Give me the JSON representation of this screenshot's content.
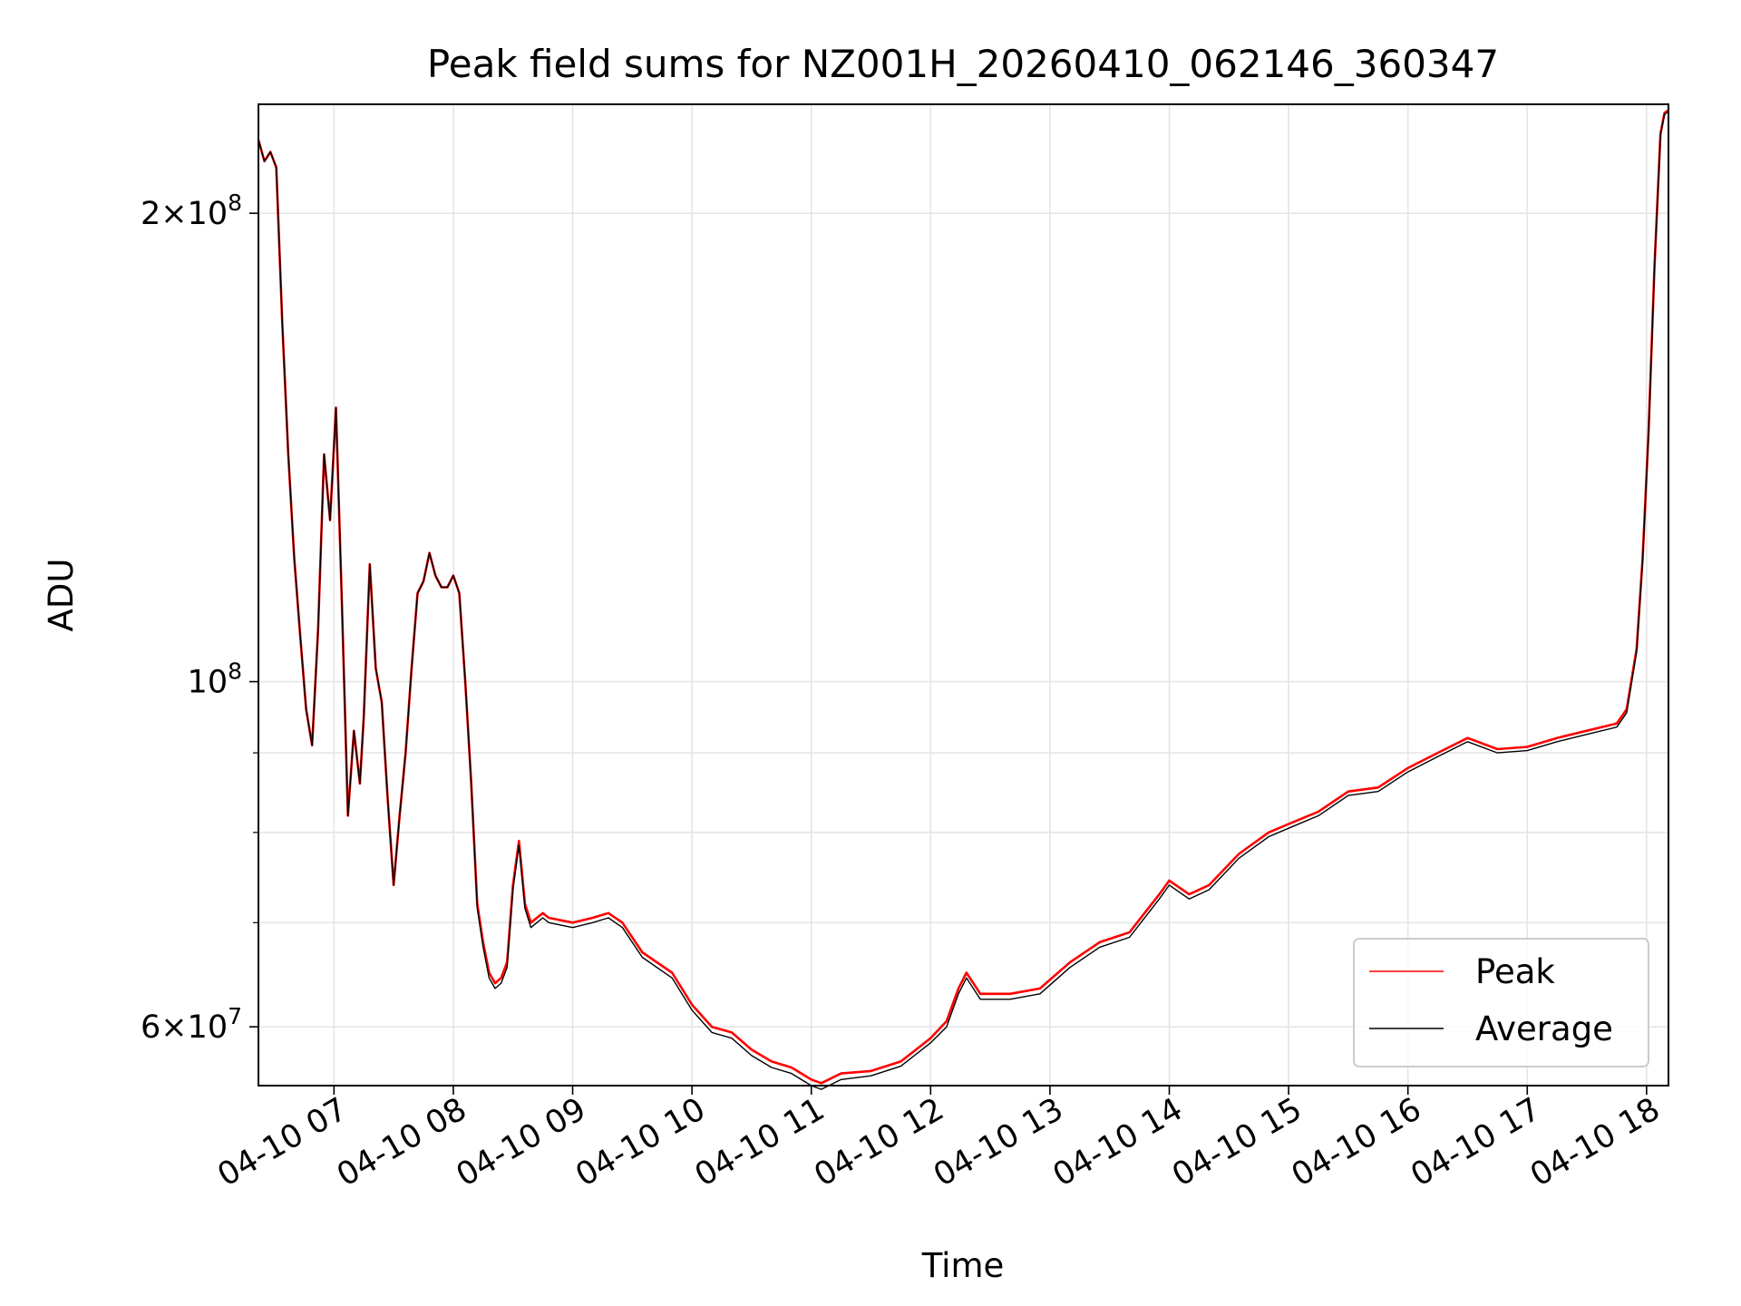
{
  "chart_data": {
    "type": "line",
    "title": "Peak field sums for NZ001H_20260410_062146_360347",
    "xlabel": "Time",
    "ylabel": "ADU",
    "yscale": "log",
    "grid": true,
    "legend_placement": "lower-right",
    "xlim": [
      "04-10 06:22",
      "04-10 18:11"
    ],
    "ylim": [
      55000000,
      235000000
    ],
    "x_tick_labels": [
      "04-10 07",
      "04-10 08",
      "04-10 09",
      "04-10 10",
      "04-10 11",
      "04-10 12",
      "04-10 13",
      "04-10 14",
      "04-10 15",
      "04-10 16",
      "04-10 17",
      "04-10 18"
    ],
    "x_tick_values": [
      "04-10 07:00",
      "04-10 08:00",
      "04-10 09:00",
      "04-10 10:00",
      "04-10 11:00",
      "04-10 12:00",
      "04-10 13:00",
      "04-10 14:00",
      "04-10 15:00",
      "04-10 16:00",
      "04-10 17:00",
      "04-10 18:00"
    ],
    "y_tick_labels": [
      {
        "value": 200000000,
        "mantissa": "2",
        "exponent": "8"
      },
      {
        "value": 100000000,
        "mantissa": "",
        "exponent": "8"
      },
      {
        "value": 60000000,
        "mantissa": "6",
        "exponent": "7"
      }
    ],
    "y_minor_ticks": [
      70000000,
      80000000,
      90000000
    ],
    "series": [
      {
        "name": "Peak",
        "color": "#ff0000",
        "points": [
          [
            "04-10 06:22",
            223000000
          ],
          [
            "04-10 06:25",
            216000000
          ],
          [
            "04-10 06:28",
            219000000
          ],
          [
            "04-10 06:31",
            214000000
          ],
          [
            "04-10 06:34",
            170000000
          ],
          [
            "04-10 06:37",
            140000000
          ],
          [
            "04-10 06:40",
            120000000
          ],
          [
            "04-10 06:43",
            107000000
          ],
          [
            "04-10 06:46",
            96000000
          ],
          [
            "04-10 06:49",
            91000000
          ],
          [
            "04-10 06:52",
            108000000
          ],
          [
            "04-10 06:55",
            140000000
          ],
          [
            "04-10 06:58",
            127000000
          ],
          [
            "04-10 07:01",
            150000000
          ],
          [
            "04-10 07:04",
            112000000
          ],
          [
            "04-10 07:07",
            82000000
          ],
          [
            "04-10 07:10",
            93000000
          ],
          [
            "04-10 07:13",
            86000000
          ],
          [
            "04-10 07:15",
            95000000
          ],
          [
            "04-10 07:18",
            119000000
          ],
          [
            "04-10 07:21",
            102000000
          ],
          [
            "04-10 07:24",
            97000000
          ],
          [
            "04-10 07:27",
            84000000
          ],
          [
            "04-10 07:30",
            74000000
          ],
          [
            "04-10 07:33",
            82000000
          ],
          [
            "04-10 07:36",
            90000000
          ],
          [
            "04-10 07:39",
            102000000
          ],
          [
            "04-10 07:42",
            114000000
          ],
          [
            "04-10 07:45",
            116000000
          ],
          [
            "04-10 07:48",
            121000000
          ],
          [
            "04-10 07:51",
            117000000
          ],
          [
            "04-10 07:54",
            115000000
          ],
          [
            "04-10 07:57",
            115000000
          ],
          [
            "04-10 08:00",
            117000000
          ],
          [
            "04-10 08:03",
            114000000
          ],
          [
            "04-10 08:06",
            100000000
          ],
          [
            "04-10 08:09",
            86000000
          ],
          [
            "04-10 08:12",
            72000000
          ],
          [
            "04-10 08:15",
            68000000
          ],
          [
            "04-10 08:18",
            65000000
          ],
          [
            "04-10 08:21",
            64000000
          ],
          [
            "04-10 08:24",
            64500000
          ],
          [
            "04-10 08:27",
            66000000
          ],
          [
            "04-10 08:30",
            74000000
          ],
          [
            "04-10 08:33",
            79000000
          ],
          [
            "04-10 08:36",
            72000000
          ],
          [
            "04-10 08:39",
            70000000
          ],
          [
            "04-10 08:42",
            70500000
          ],
          [
            "04-10 08:45",
            71000000
          ],
          [
            "04-10 08:48",
            70500000
          ],
          [
            "04-10 09:00",
            70000000
          ],
          [
            "04-10 09:10",
            70500000
          ],
          [
            "04-10 09:18",
            71000000
          ],
          [
            "04-10 09:25",
            70000000
          ],
          [
            "04-10 09:35",
            67000000
          ],
          [
            "04-10 09:50",
            65000000
          ],
          [
            "04-10 10:00",
            62000000
          ],
          [
            "04-10 10:10",
            60000000
          ],
          [
            "04-10 10:20",
            59500000
          ],
          [
            "04-10 10:30",
            58000000
          ],
          [
            "04-10 10:40",
            57000000
          ],
          [
            "04-10 10:50",
            56500000
          ],
          [
            "04-10 11:00",
            55500000
          ],
          [
            "04-10 11:05",
            55200000
          ],
          [
            "04-10 11:15",
            56000000
          ],
          [
            "04-10 11:30",
            56200000
          ],
          [
            "04-10 11:45",
            57000000
          ],
          [
            "04-10 12:00",
            59000000
          ],
          [
            "04-10 12:08",
            60500000
          ],
          [
            "04-10 12:14",
            63500000
          ],
          [
            "04-10 12:18",
            65000000
          ],
          [
            "04-10 12:25",
            63000000
          ],
          [
            "04-10 12:40",
            63000000
          ],
          [
            "04-10 12:55",
            63500000
          ],
          [
            "04-10 13:10",
            66000000
          ],
          [
            "04-10 13:25",
            68000000
          ],
          [
            "04-10 13:40",
            69000000
          ],
          [
            "04-10 13:55",
            73000000
          ],
          [
            "04-10 14:00",
            74500000
          ],
          [
            "04-10 14:10",
            73000000
          ],
          [
            "04-10 14:20",
            74000000
          ],
          [
            "04-10 14:35",
            77500000
          ],
          [
            "04-10 14:50",
            80000000
          ],
          [
            "04-10 15:00",
            81000000
          ],
          [
            "04-10 15:15",
            82500000
          ],
          [
            "04-10 15:30",
            85000000
          ],
          [
            "04-10 15:45",
            85500000
          ],
          [
            "04-10 16:00",
            88000000
          ],
          [
            "04-10 16:15",
            90000000
          ],
          [
            "04-10 16:30",
            92000000
          ],
          [
            "04-10 16:45",
            90500000
          ],
          [
            "04-10 17:00",
            90800000
          ],
          [
            "04-10 17:15",
            92000000
          ],
          [
            "04-10 17:30",
            93000000
          ],
          [
            "04-10 17:45",
            94000000
          ],
          [
            "04-10 17:50",
            96000000
          ],
          [
            "04-10 17:55",
            105000000
          ],
          [
            "04-10 17:58",
            120000000
          ],
          [
            "04-10 18:01",
            145000000
          ],
          [
            "04-10 18:04",
            185000000
          ],
          [
            "04-10 18:07",
            225000000
          ],
          [
            "04-10 18:09",
            232000000
          ],
          [
            "04-10 18:11",
            233000000
          ]
        ]
      },
      {
        "name": "Average",
        "color": "#000000",
        "points": [
          [
            "04-10 06:22",
            223000000
          ],
          [
            "04-10 06:25",
            216000000
          ],
          [
            "04-10 06:28",
            219000000
          ],
          [
            "04-10 06:31",
            214000000
          ],
          [
            "04-10 06:34",
            170000000
          ],
          [
            "04-10 06:37",
            140000000
          ],
          [
            "04-10 06:40",
            120000000
          ],
          [
            "04-10 06:43",
            107000000
          ],
          [
            "04-10 06:46",
            96000000
          ],
          [
            "04-10 06:49",
            91000000
          ],
          [
            "04-10 06:52",
            108000000
          ],
          [
            "04-10 06:55",
            140000000
          ],
          [
            "04-10 06:58",
            127000000
          ],
          [
            "04-10 07:01",
            150000000
          ],
          [
            "04-10 07:04",
            112000000
          ],
          [
            "04-10 07:07",
            82000000
          ],
          [
            "04-10 07:10",
            93000000
          ],
          [
            "04-10 07:13",
            86000000
          ],
          [
            "04-10 07:15",
            95000000
          ],
          [
            "04-10 07:18",
            119000000
          ],
          [
            "04-10 07:21",
            102000000
          ],
          [
            "04-10 07:24",
            97000000
          ],
          [
            "04-10 07:27",
            84000000
          ],
          [
            "04-10 07:30",
            74000000
          ],
          [
            "04-10 07:33",
            82000000
          ],
          [
            "04-10 07:36",
            90000000
          ],
          [
            "04-10 07:39",
            102000000
          ],
          [
            "04-10 07:42",
            114000000
          ],
          [
            "04-10 07:45",
            116000000
          ],
          [
            "04-10 07:48",
            121000000
          ],
          [
            "04-10 07:51",
            117000000
          ],
          [
            "04-10 07:54",
            115000000
          ],
          [
            "04-10 07:57",
            115000000
          ],
          [
            "04-10 08:00",
            117000000
          ],
          [
            "04-10 08:03",
            114000000
          ],
          [
            "04-10 08:06",
            100000000
          ],
          [
            "04-10 08:09",
            86000000
          ],
          [
            "04-10 08:12",
            71500000
          ],
          [
            "04-10 08:15",
            67500000
          ],
          [
            "04-10 08:18",
            64500000
          ],
          [
            "04-10 08:21",
            63500000
          ],
          [
            "04-10 08:24",
            64000000
          ],
          [
            "04-10 08:27",
            65500000
          ],
          [
            "04-10 08:30",
            73500000
          ],
          [
            "04-10 08:33",
            78500000
          ],
          [
            "04-10 08:36",
            71500000
          ],
          [
            "04-10 08:39",
            69500000
          ],
          [
            "04-10 08:42",
            70000000
          ],
          [
            "04-10 08:45",
            70500000
          ],
          [
            "04-10 08:48",
            70000000
          ],
          [
            "04-10 09:00",
            69500000
          ],
          [
            "04-10 09:10",
            70000000
          ],
          [
            "04-10 09:18",
            70500000
          ],
          [
            "04-10 09:25",
            69500000
          ],
          [
            "04-10 09:35",
            66500000
          ],
          [
            "04-10 09:50",
            64500000
          ],
          [
            "04-10 10:00",
            61500000
          ],
          [
            "04-10 10:10",
            59500000
          ],
          [
            "04-10 10:20",
            59000000
          ],
          [
            "04-10 10:30",
            57500000
          ],
          [
            "04-10 10:40",
            56500000
          ],
          [
            "04-10 10:50",
            56000000
          ],
          [
            "04-10 11:00",
            55000000
          ],
          [
            "04-10 11:05",
            54700000
          ],
          [
            "04-10 11:15",
            55500000
          ],
          [
            "04-10 11:30",
            55800000
          ],
          [
            "04-10 11:45",
            56600000
          ],
          [
            "04-10 12:00",
            58600000
          ],
          [
            "04-10 12:08",
            60000000
          ],
          [
            "04-10 12:14",
            63000000
          ],
          [
            "04-10 12:18",
            64500000
          ],
          [
            "04-10 12:25",
            62500000
          ],
          [
            "04-10 12:40",
            62500000
          ],
          [
            "04-10 12:55",
            63000000
          ],
          [
            "04-10 13:10",
            65500000
          ],
          [
            "04-10 13:25",
            67500000
          ],
          [
            "04-10 13:40",
            68500000
          ],
          [
            "04-10 13:55",
            72500000
          ],
          [
            "04-10 14:00",
            74000000
          ],
          [
            "04-10 14:10",
            72500000
          ],
          [
            "04-10 14:20",
            73500000
          ],
          [
            "04-10 14:35",
            77000000
          ],
          [
            "04-10 14:50",
            79500000
          ],
          [
            "04-10 15:00",
            80500000
          ],
          [
            "04-10 15:15",
            82000000
          ],
          [
            "04-10 15:30",
            84500000
          ],
          [
            "04-10 15:45",
            85000000
          ],
          [
            "04-10 16:00",
            87500000
          ],
          [
            "04-10 16:15",
            89500000
          ],
          [
            "04-10 16:30",
            91500000
          ],
          [
            "04-10 16:45",
            90000000
          ],
          [
            "04-10 17:00",
            90300000
          ],
          [
            "04-10 17:15",
            91500000
          ],
          [
            "04-10 17:30",
            92500000
          ],
          [
            "04-10 17:45",
            93500000
          ],
          [
            "04-10 17:50",
            95500000
          ],
          [
            "04-10 17:55",
            104500000
          ],
          [
            "04-10 17:58",
            119500000
          ],
          [
            "04-10 18:01",
            144500000
          ],
          [
            "04-10 18:04",
            184500000
          ],
          [
            "04-10 18:07",
            224500000
          ],
          [
            "04-10 18:09",
            231500000
          ],
          [
            "04-10 18:11",
            232500000
          ]
        ]
      }
    ]
  }
}
